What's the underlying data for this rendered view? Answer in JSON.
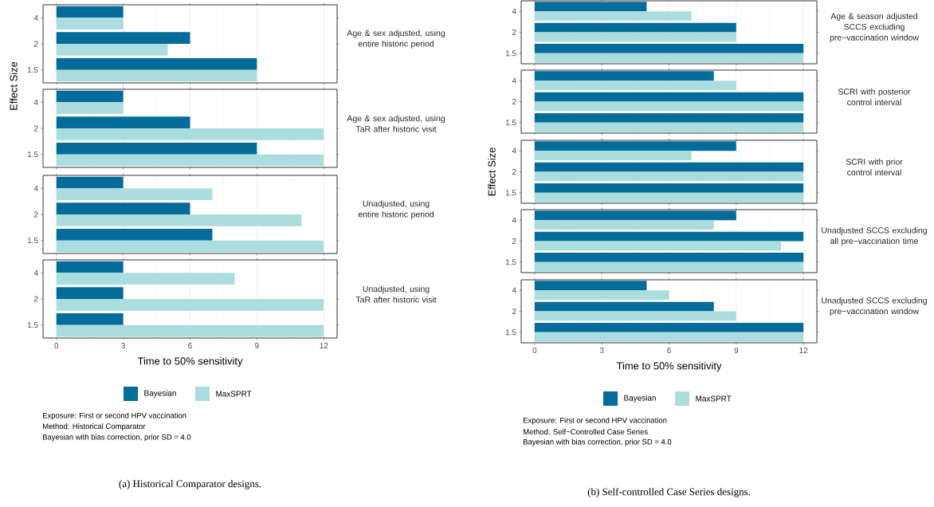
{
  "chart_data": [
    {
      "type": "bar",
      "orientation": "horizontal",
      "y2label": "Age & sex adjusted, using entire historic period",
      "categories": [
        "4",
        "2",
        "1.5"
      ],
      "xlim": [
        -0.6,
        12.6
      ],
      "xticks": [
        0,
        3,
        6,
        9,
        12
      ],
      "grid": "x",
      "tick_labels": "y",
      "series": [
        {
          "color": "#046c9a",
          "values": [
            3,
            6,
            9
          ]
        },
        {
          "color": "#abdddf",
          "values": [
            3,
            5,
            9
          ]
        }
      ]
    },
    {
      "type": "bar",
      "orientation": "horizontal",
      "y2label": "Age & sex adjusted, using TaR after historic visit",
      "ylabel": "Effect Size",
      "categories": [
        "4",
        "2",
        "1.5"
      ],
      "xlim": [
        -0.6,
        12.6
      ],
      "xticks": [
        0,
        3,
        6,
        9,
        12
      ],
      "grid": "x",
      "tick_labels": "y",
      "series": [
        {
          "color": "#046c9a",
          "values": [
            3,
            6,
            9
          ]
        },
        {
          "color": "#abdddf",
          "values": [
            3,
            12,
            12
          ]
        }
      ]
    },
    {
      "type": "bar",
      "orientation": "horizontal",
      "y2label": "Unadjusted, using entire historic period",
      "categories": [
        "4",
        "2",
        "1.5"
      ],
      "xlim": [
        -0.6,
        12.6
      ],
      "xticks": [
        0,
        3,
        6,
        9,
        12
      ],
      "grid": "x",
      "tick_labels": "y",
      "series": [
        {
          "color": "#046c9a",
          "values": [
            3,
            6,
            7
          ]
        },
        {
          "color": "#abdddf",
          "values": [
            7,
            11,
            12
          ]
        }
      ]
    },
    {
      "type": "bar",
      "orientation": "horizontal",
      "y2label": "Unadjusted, using TaR after historic visit",
      "xlabel": "Time to 50% sensitivity",
      "categories": [
        "4",
        "2",
        "1.5"
      ],
      "xlim": [
        -0.6,
        12.6
      ],
      "xticks": [
        0,
        3,
        6,
        9,
        12
      ],
      "grid": "x",
      "legend": "bottom",
      "series": [
        {
          "name": "Bayesian",
          "color": "#046c9a",
          "values": [
            3,
            3,
            3
          ]
        },
        {
          "name": "MaxSPRT",
          "color": "#abdddf",
          "values": [
            8,
            12,
            12
          ]
        }
      ],
      "annotations": [
        "Exposure: First or second HPV vaccination",
        "Method: Historical Comparator",
        "Bayesian with bias correction, prior SD = 4.0",
        "(a) Historical Comparator designs."
      ]
    },
    {
      "type": "bar",
      "orientation": "horizontal",
      "y2label": "Age & season adjusted SCCS excluding pre−vaccination window",
      "categories": [
        "4",
        "2",
        "1.5"
      ],
      "xlim": [
        -0.6,
        12.6
      ],
      "xticks": [
        0,
        3,
        6,
        9,
        12
      ],
      "grid": "x",
      "tick_labels": "y",
      "series": [
        {
          "color": "#046c9a",
          "values": [
            5,
            9,
            12
          ]
        },
        {
          "color": "#abdddf",
          "values": [
            7,
            9,
            12
          ]
        }
      ]
    },
    {
      "type": "bar",
      "orientation": "horizontal",
      "y2label": "SCRI with posterior control interval",
      "categories": [
        "4",
        "2",
        "1.5"
      ],
      "xlim": [
        -0.6,
        12.6
      ],
      "xticks": [
        0,
        3,
        6,
        9,
        12
      ],
      "grid": "x",
      "tick_labels": "y",
      "series": [
        {
          "color": "#046c9a",
          "values": [
            8,
            12,
            12
          ]
        },
        {
          "color": "#abdddf",
          "values": [
            9,
            12,
            12
          ]
        }
      ]
    },
    {
      "type": "bar",
      "orientation": "horizontal",
      "y2label": "SCRI with prior control interval",
      "ylabel": "Effect Size",
      "categories": [
        "4",
        "2",
        "1.5"
      ],
      "xlim": [
        -0.6,
        12.6
      ],
      "xticks": [
        0,
        3,
        6,
        9,
        12
      ],
      "grid": "x",
      "tick_labels": "y",
      "series": [
        {
          "color": "#046c9a",
          "values": [
            9,
            12,
            12
          ]
        },
        {
          "color": "#abdddf",
          "values": [
            7,
            12,
            12
          ]
        }
      ]
    },
    {
      "type": "bar",
      "orientation": "horizontal",
      "y2label": "Unadjusted SCCS excluding all pre−vaccination time",
      "categories": [
        "4",
        "2",
        "1.5"
      ],
      "xlim": [
        -0.6,
        12.6
      ],
      "xticks": [
        0,
        3,
        6,
        9,
        12
      ],
      "grid": "x",
      "tick_labels": "y",
      "series": [
        {
          "color": "#046c9a",
          "values": [
            9,
            12,
            12
          ]
        },
        {
          "color": "#abdddf",
          "values": [
            8,
            11,
            12
          ]
        }
      ]
    },
    {
      "type": "bar",
      "orientation": "horizontal",
      "y2label": "Unadjusted SCCS excluding pre−vaccination window",
      "xlabel": "Time to 50% sensitivity",
      "categories": [
        "4",
        "2",
        "1.5"
      ],
      "xlim": [
        -0.6,
        12.6
      ],
      "xticks": [
        0,
        3,
        6,
        9,
        12
      ],
      "grid": "x",
      "legend": "bottom",
      "series": [
        {
          "name": "Bayesian",
          "color": "#046c9a",
          "values": [
            5,
            8,
            12
          ]
        },
        {
          "name": "MaxSPRT",
          "color": "#abdddf",
          "values": [
            6,
            9,
            12
          ]
        }
      ],
      "annotations": [
        "Exposure: First or second HPV vaccination",
        "Method: Self−Controlled Case Series",
        "Bayesian with bias correction, prior SD = 4.0",
        "(b) Self-controlled Case Series designs."
      ]
    }
  ]
}
